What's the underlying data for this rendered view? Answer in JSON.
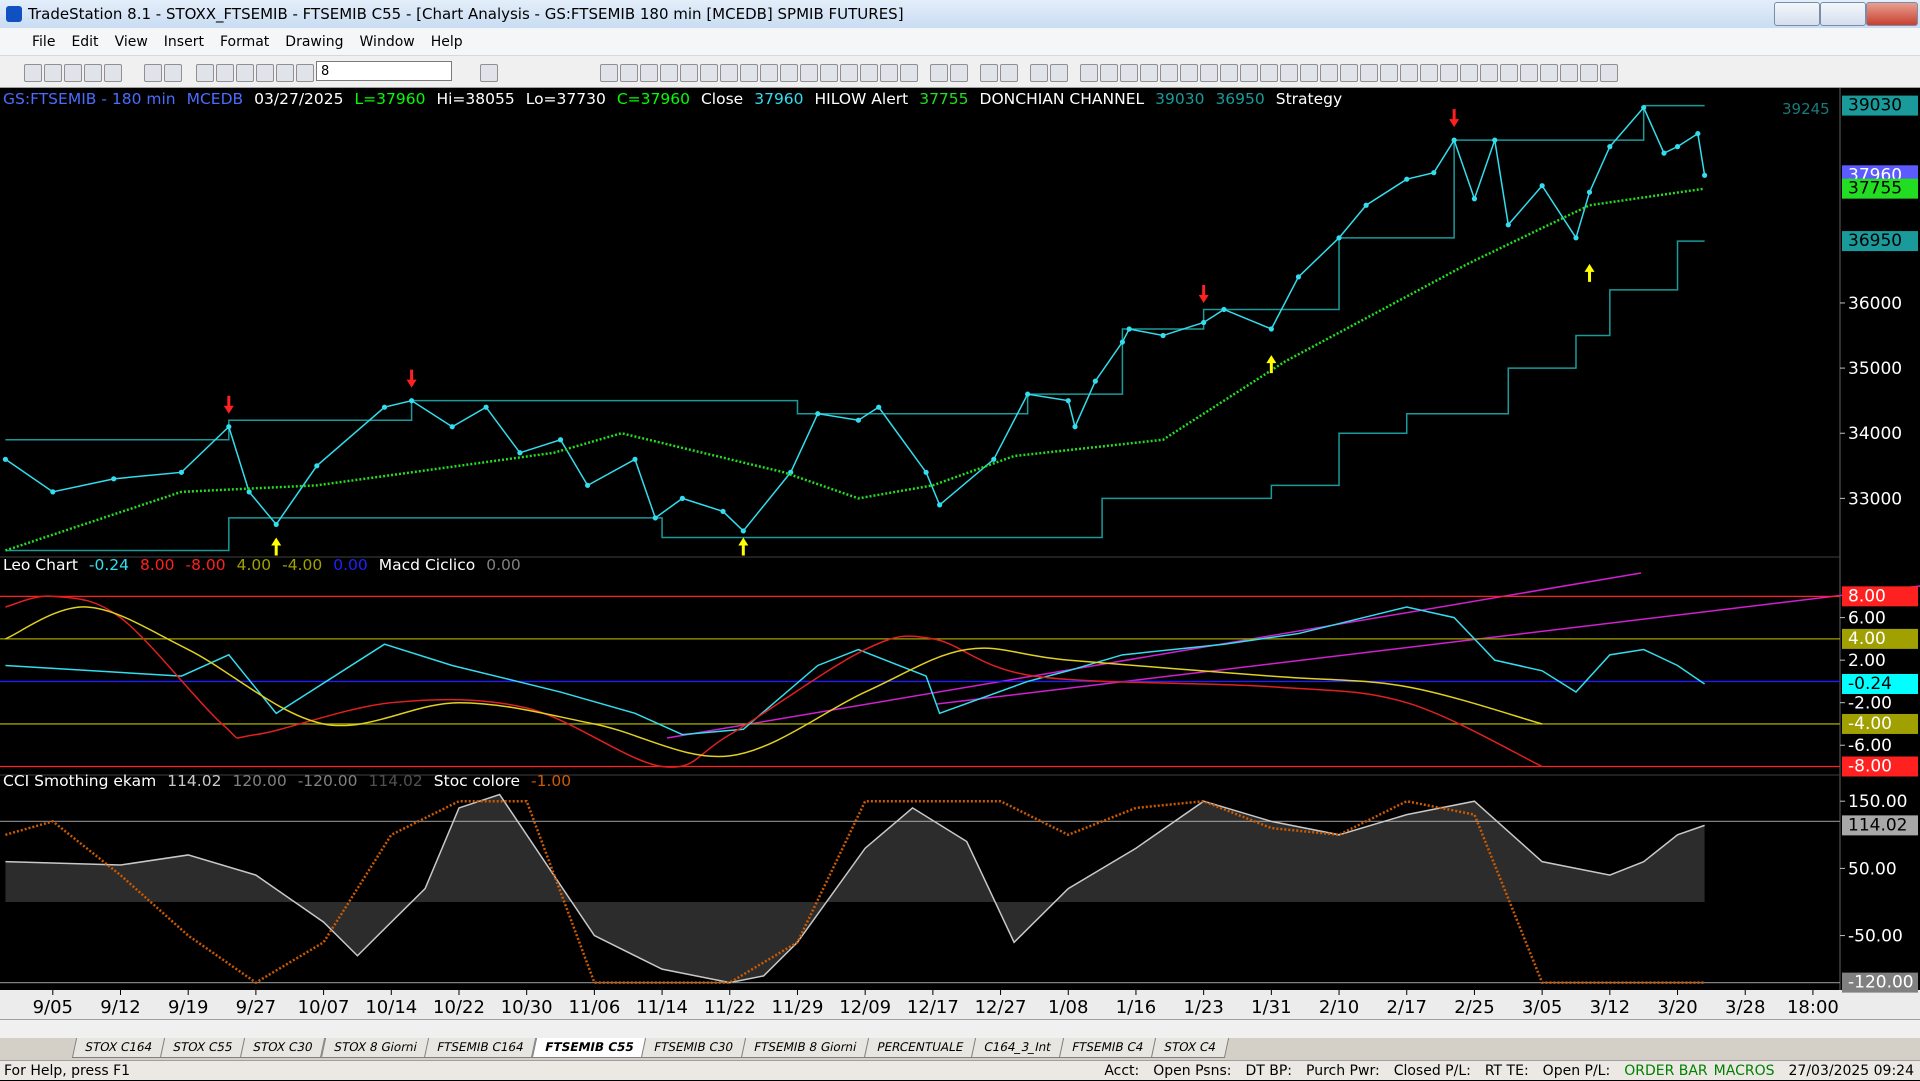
{
  "window": {
    "title": "TradeStation 8.1 - STOXX_FTSEMIB - FTSEMIB C55 - [Chart Analysis - GS:FTSEMIB  180 min  [MCEDB] SPMIB FUTURES]",
    "menu": [
      "File",
      "Edit",
      "View",
      "Insert",
      "Format",
      "Drawing",
      "Window",
      "Help"
    ],
    "toolbar_combo": "8",
    "tabs": [
      "STOX C164",
      "STOX C55",
      "STOX C30",
      "STOX 8 Giorni",
      "FTSEMIB C164",
      "FTSEMIB C55",
      "FTSEMIB C30",
      "FTSEMIB 8 Giorni",
      "PERCENTUALE",
      "C164_3_Int",
      "FTSEMIB C4",
      "STOX C4"
    ],
    "active_tab": 5,
    "status": {
      "help": "For Help, press F1",
      "fields": [
        "Acct:",
        "Open Psns:",
        "DT BP:",
        "Purch Pwr:",
        "Closed P/L:",
        "RT TE:",
        "Open P/L:"
      ],
      "order_bar": "ORDER BAR",
      "macros": "MACROS",
      "clock": "27/03/2025 09:24"
    }
  },
  "chart_data": [
    {
      "type": "line",
      "title": "GS:FTSEMIB - 180 min",
      "source": "MCEDB",
      "date": "03/27/2025",
      "quote": [
        {
          "text": "L=37960",
          "color": "#00ff00"
        },
        {
          "text": "Hi=38055",
          "color": "#ffffff"
        },
        {
          "text": "Lo=37730",
          "color": "#ffffff"
        },
        {
          "text": "C=37960",
          "color": "#00ff00"
        }
      ],
      "strategy_label": "Strategy",
      "top_label": "39245",
      "xlim": [
        -0.78,
        26.4
      ],
      "ylim": [
        32100,
        39300
      ],
      "yticks": [
        33000,
        34000,
        35000,
        36000
      ],
      "series": [
        {
          "name": "Close",
          "color": "#33ddee",
          "box_color": "#5b5bff",
          "markers": true,
          "x": [
            -0.7,
            0,
            0.9,
            1.9,
            2.6,
            2.9,
            3.3,
            3.9,
            4.9,
            5.3,
            5.9,
            6.4,
            6.9,
            7.5,
            7.9,
            8.6,
            8.9,
            9.3,
            9.9,
            10.2,
            10.9,
            11.3,
            11.9,
            12.2,
            12.9,
            13.1,
            13.9,
            14.4,
            15.0,
            15.1,
            15.4,
            15.8,
            15.9,
            16.4,
            17.0,
            17.3,
            18.0,
            18.4,
            19.0,
            19.4,
            20.0,
            20.4,
            20.7,
            21.0,
            21.3,
            21.5,
            22.0,
            22.5,
            22.7,
            23.0,
            23.5,
            23.8,
            24.0,
            24.3,
            24.4
          ],
          "values": [
            33600,
            33100,
            33300,
            33400,
            34100,
            33100,
            32600,
            33500,
            34400,
            34500,
            34100,
            34400,
            33700,
            33900,
            33200,
            33600,
            32700,
            33000,
            32800,
            32500,
            33400,
            34300,
            34200,
            34400,
            33400,
            32900,
            33600,
            34600,
            34500,
            34100,
            34800,
            35400,
            35600,
            35500,
            35700,
            35900,
            35600,
            36400,
            37000,
            37500,
            37900,
            38000,
            38500,
            37600,
            38500,
            37200,
            37800,
            37000,
            37700,
            38400,
            39000,
            38300,
            38400,
            38600,
            37960
          ]
        },
        {
          "name": "HILOW Alert",
          "color": "#22dd22",
          "box_color": "#22dd22",
          "dotted": true,
          "x": [
            -0.7,
            1.9,
            3.9,
            7.4,
            8.4,
            10.8,
            11.9,
            13.0,
            14.2,
            16.4,
            18.2,
            20.9,
            22.7,
            24.4
          ],
          "values": [
            32200,
            33100,
            33200,
            33700,
            34000,
            33400,
            33000,
            33200,
            33650,
            33900,
            35100,
            36600,
            37500,
            37755
          ]
        }
      ],
      "channel": {
        "name": "DONCHIAN CHANNEL",
        "color": "#1a9a9a",
        "box_color": "#1a9a9a",
        "upper": {
          "x": [
            -0.7,
            2.6,
            5.3,
            11.0,
            14.4,
            15.8,
            17.0,
            19.0,
            20.7,
            23.5,
            24.4
          ],
          "values": [
            33900,
            34200,
            34500,
            34300,
            34600,
            35600,
            35900,
            37000,
            38500,
            39030,
            39030
          ]
        },
        "lower": {
          "x": [
            -0.7,
            2.6,
            9.0,
            15.0,
            15.5,
            18.0,
            19.0,
            20.0,
            21.5,
            22.5,
            23.0,
            24.0,
            24.4
          ],
          "values": [
            32200,
            32700,
            32400,
            32400,
            33000,
            33200,
            34000,
            34300,
            35000,
            35500,
            36200,
            36950,
            36950
          ]
        }
      },
      "signals": {
        "sell": {
          "color": "#ff2020",
          "x": [
            2.6,
            5.3,
            17.0,
            20.7
          ],
          "values": [
            34300,
            34700,
            36000,
            38700
          ]
        },
        "buy": {
          "color": "#ffff00",
          "x": [
            3.3,
            10.2,
            18.0,
            22.7
          ],
          "values": [
            32400,
            32400,
            35200,
            36600
          ]
        }
      }
    },
    {
      "type": "line",
      "title": "Leo Chart",
      "xlim": [
        -0.78,
        26.4
      ],
      "ylim": [
        -8.8,
        11.7
      ],
      "yticks": [
        {
          "value": 6,
          "label": "6.00"
        },
        {
          "value": 2,
          "label": "2.00"
        },
        {
          "value": -2,
          "label": "-2.00"
        },
        {
          "value": -6,
          "label": "-6.00"
        }
      ],
      "levels": [
        {
          "value": 8,
          "label": "8.00",
          "color": "#ff2020",
          "box": true
        },
        {
          "value": -8,
          "label": "-8.00",
          "color": "#ff2020",
          "box": true
        },
        {
          "value": 4,
          "label": "4.00",
          "color": "#a0a000",
          "box": true
        },
        {
          "value": -4,
          "label": "-4.00",
          "color": "#a0a000",
          "box": true
        },
        {
          "value": 0,
          "label": "0.00",
          "color": "#2020ff",
          "box": false
        }
      ],
      "study_name": "Macd Ciclico",
      "study_value": "0.00",
      "series": [
        {
          "name": "Leo Chart",
          "color": "#33ddee",
          "box_color": "#00ffff",
          "x": [
            -0.7,
            1.9,
            2.6,
            3.3,
            4.9,
            5.9,
            7.5,
            8.6,
            9.3,
            10.2,
            11.3,
            11.9,
            12.9,
            13.1,
            14.4,
            15.0,
            15.8,
            17.3,
            18.4,
            20.0,
            20.7,
            21.0,
            21.3,
            22.0,
            22.5,
            23.0,
            23.5,
            24.0,
            24.4
          ],
          "values": [
            1.5,
            0.5,
            2.5,
            -3,
            3.5,
            1.5,
            -1,
            -3,
            -5,
            -4.5,
            1.5,
            3,
            0.5,
            -3,
            0,
            1,
            2.5,
            3.5,
            4.5,
            7,
            6,
            4,
            2,
            1,
            -1,
            2.5,
            3,
            1.5,
            -0.24
          ]
        },
        {
          "color": "#e02020",
          "smooth": true,
          "x": [
            -0.7,
            0,
            1,
            2.5,
            3,
            5,
            7,
            9,
            10,
            12,
            13,
            14.5,
            18,
            20,
            22
          ],
          "values": [
            7,
            8,
            6,
            -4,
            -5,
            -2,
            -2.5,
            -8,
            -5,
            3,
            4,
            0.5,
            -0.5,
            -2,
            -8
          ]
        },
        {
          "color": "#e0d020",
          "smooth": true,
          "x": [
            -0.7,
            0.5,
            2,
            4,
            6,
            8,
            10,
            12,
            13.5,
            15,
            18,
            20,
            22
          ],
          "values": [
            4,
            7,
            3,
            -4,
            -2,
            -4,
            -7,
            -1,
            3,
            2,
            0.5,
            -0.5,
            -4
          ]
        }
      ]
    },
    {
      "type": "line",
      "title": "CCI Smothing ekam",
      "xlim": [
        -0.78,
        26.4
      ],
      "ylim": [
        -131,
        189
      ],
      "yticks": [
        {
          "value": 150,
          "label": "150.00"
        },
        {
          "value": 50,
          "label": "50.00"
        },
        {
          "value": -50,
          "label": "-50.00"
        }
      ],
      "levels": [
        {
          "value": 120,
          "label": "120.00",
          "color": "#808080",
          "box": false
        },
        {
          "value": -120,
          "label": "-120.00",
          "color": "#808080",
          "box": true
        }
      ],
      "xticks": [
        {
          "value": 0,
          "label": "9/05"
        },
        {
          "value": 1,
          "label": "9/12"
        },
        {
          "value": 2,
          "label": "9/19"
        },
        {
          "value": 3,
          "label": "9/27"
        },
        {
          "value": 4,
          "label": "10/07"
        },
        {
          "value": 5,
          "label": "10/14"
        },
        {
          "value": 6,
          "label": "10/22"
        },
        {
          "value": 7,
          "label": "10/30"
        },
        {
          "value": 8,
          "label": "11/06"
        },
        {
          "value": 9,
          "label": "11/14"
        },
        {
          "value": 10,
          "label": "11/22"
        },
        {
          "value": 11,
          "label": "11/29"
        },
        {
          "value": 12,
          "label": "12/09"
        },
        {
          "value": 13,
          "label": "12/17"
        },
        {
          "value": 14,
          "label": "12/27"
        },
        {
          "value": 15,
          "label": "1/08"
        },
        {
          "value": 16,
          "label": "1/16"
        },
        {
          "value": 17,
          "label": "1/23"
        },
        {
          "value": 18,
          "label": "1/31"
        },
        {
          "value": 19,
          "label": "2/10"
        },
        {
          "value": 20,
          "label": "2/17"
        },
        {
          "value": 21,
          "label": "2/25"
        },
        {
          "value": 22,
          "label": "3/05"
        },
        {
          "value": 23,
          "label": "3/12"
        },
        {
          "value": 24,
          "label": "3/20"
        },
        {
          "value": 25,
          "label": "3/28"
        },
        {
          "value": 26,
          "label": "18:00"
        }
      ],
      "series": [
        {
          "name": "CCI Smothing ekam",
          "color": "#c8c8c8",
          "box_color": "#a8a8a8",
          "area": true,
          "x": [
            -0.7,
            1,
            2,
            3,
            4,
            4.5,
            5.5,
            6,
            6.6,
            7,
            8,
            9,
            10,
            10.5,
            11,
            12,
            12.7,
            13.5,
            14.2,
            15,
            16,
            17,
            18,
            19,
            20,
            21,
            22,
            23,
            23.5,
            24,
            24.4
          ],
          "values": [
            60,
            55,
            70,
            40,
            -30,
            -80,
            20,
            140,
            160,
            100,
            -50,
            -100,
            -120,
            -110,
            -60,
            80,
            140,
            90,
            -60,
            20,
            80,
            150,
            120,
            100,
            130,
            150,
            60,
            40,
            60,
            100,
            114.02
          ]
        },
        {
          "name": "Stoc colore",
          "color": "#cc5a00",
          "dotted": true,
          "header_value": "-1.00",
          "x": [
            -0.7,
            0,
            1,
            2,
            3,
            4,
            5,
            6,
            7,
            8,
            10,
            11,
            12,
            13,
            14,
            15,
            16,
            17,
            18,
            19,
            20,
            21,
            22,
            24.4
          ],
          "values": [
            100,
            120,
            40,
            -50,
            -120,
            -60,
            100,
            150,
            150,
            -120,
            -120,
            -60,
            150,
            150,
            150,
            100,
            140,
            150,
            110,
            100,
            150,
            130,
            -120,
            -120
          ]
        }
      ]
    }
  ]
}
